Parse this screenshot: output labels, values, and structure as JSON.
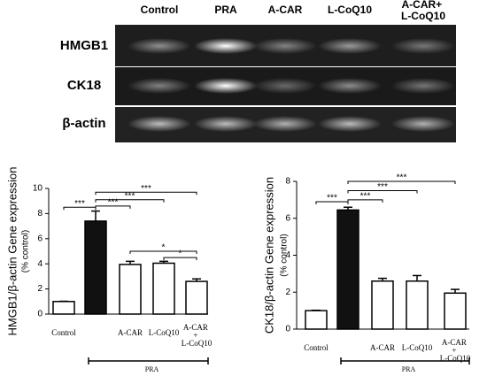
{
  "gel": {
    "lanes": [
      "Control",
      "PRA",
      "A-CAR",
      "L-CoQ10",
      "A-CAR+ L-CoQ10"
    ],
    "rows": [
      "HMGB1",
      "CK18",
      "β-actin"
    ]
  },
  "chart_data": [
    {
      "type": "bar",
      "y_label": "HMGB1/β-actin Gene expression",
      "y_sublabel": "(% control)",
      "categories": [
        "Control",
        null,
        "A-CAR",
        "L-CoQ10",
        "A-CAR + L-CoQ10"
      ],
      "values": [
        1.0,
        7.4,
        3.95,
        4.05,
        2.6
      ],
      "errors": [
        0.02,
        0.8,
        0.25,
        0.15,
        0.2
      ],
      "colors": [
        "#ffffff",
        "#111111",
        "#ffffff",
        "#ffffff",
        "#ffffff"
      ],
      "ylim": [
        0,
        10
      ],
      "yticks": [
        0,
        2,
        4,
        6,
        8,
        10
      ],
      "group_label": "PRA",
      "annotations": [
        {
          "text": "***",
          "from": 0,
          "to": 1
        },
        {
          "text": "***",
          "from": 1,
          "to": 2
        },
        {
          "text": "***",
          "from": 1,
          "to": 3
        },
        {
          "text": "***",
          "from": 1,
          "to": 4
        },
        {
          "text": "*",
          "from": 2,
          "to": 4
        },
        {
          "text": "*",
          "from": 3,
          "to": 4
        }
      ]
    },
    {
      "type": "bar",
      "y_label": "CK18/β-actin Gene expression",
      "y_sublabel": "(% control)",
      "categories": [
        "Control",
        null,
        "A-CAR",
        "L-CoQ10",
        "A-CAR + L-CoQ10"
      ],
      "values": [
        1.0,
        6.45,
        2.6,
        2.6,
        1.95
      ],
      "errors": [
        0.02,
        0.15,
        0.15,
        0.3,
        0.2
      ],
      "colors": [
        "#ffffff",
        "#111111",
        "#ffffff",
        "#ffffff",
        "#ffffff"
      ],
      "ylim": [
        0,
        8
      ],
      "yticks": [
        0,
        2,
        4,
        6,
        8
      ],
      "group_label": "PRA",
      "annotations": [
        {
          "text": "***",
          "from": 0,
          "to": 1
        },
        {
          "text": "***",
          "from": 1,
          "to": 2
        },
        {
          "text": "***",
          "from": 1,
          "to": 3
        },
        {
          "text": "***",
          "from": 1,
          "to": 4
        }
      ]
    }
  ]
}
